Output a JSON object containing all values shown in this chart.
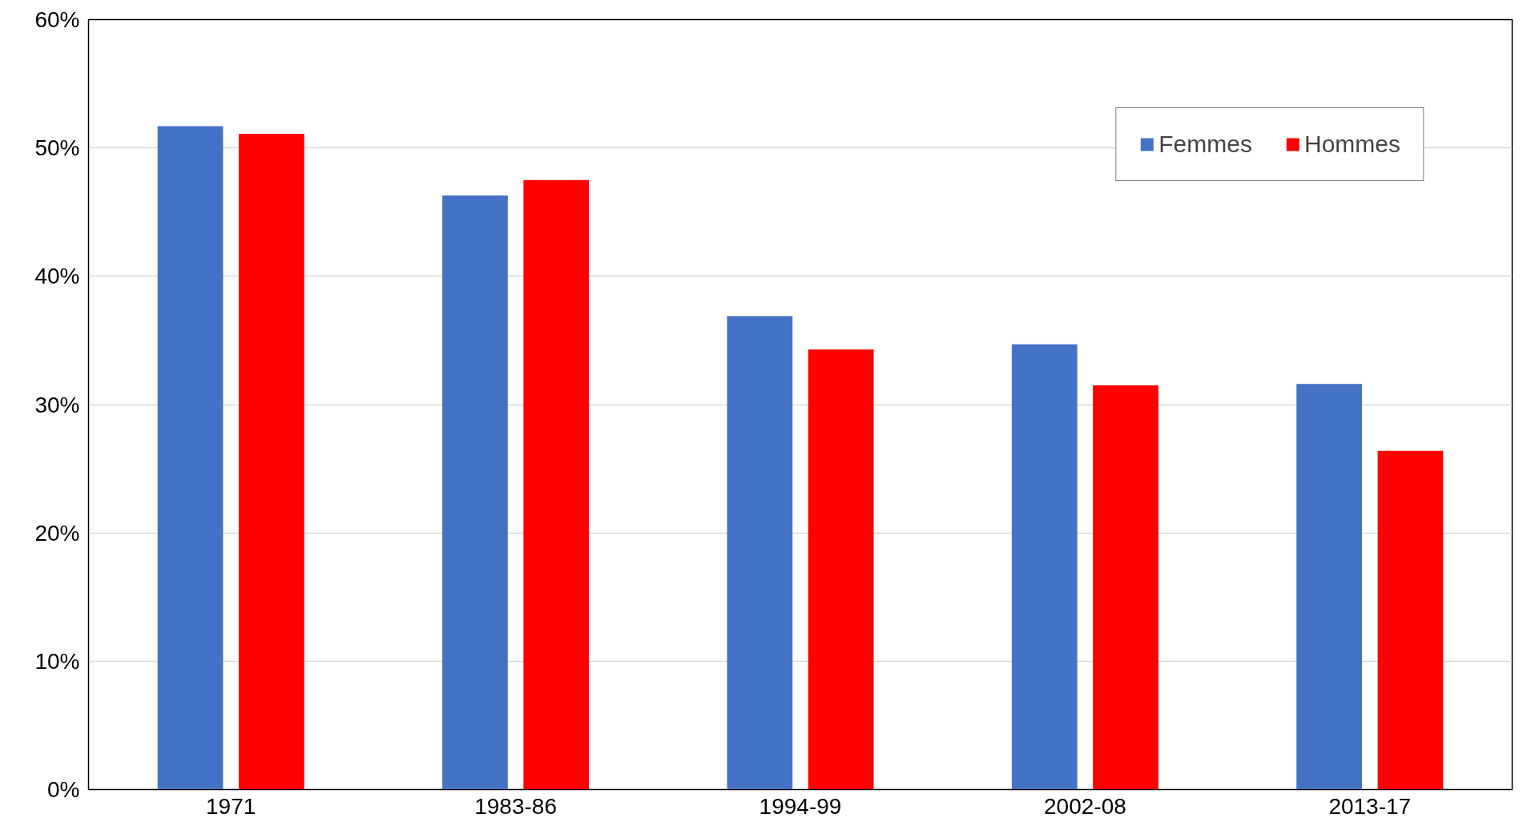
{
  "chart_data": {
    "type": "bar",
    "categories": [
      "1971",
      "1983-86",
      "1994-99",
      "2002-08",
      "2013-17"
    ],
    "series": [
      {
        "name": "Femmes",
        "color": "#4472c4",
        "values": [
          51.7,
          46.3,
          36.9,
          34.7,
          31.6
        ]
      },
      {
        "name": "Hommes",
        "color": "#ff0000",
        "values": [
          51.1,
          47.5,
          34.3,
          31.5,
          26.4
        ]
      }
    ],
    "ylim": [
      0,
      60
    ],
    "yticks": [
      {
        "value": 0,
        "label": "0%"
      },
      {
        "value": 10,
        "label": "10%"
      },
      {
        "value": 20,
        "label": "20%"
      },
      {
        "value": 30,
        "label": "30%"
      },
      {
        "value": 40,
        "label": "40%"
      },
      {
        "value": 50,
        "label": "50%"
      },
      {
        "value": 60,
        "label": "60%"
      }
    ],
    "grid": "y",
    "legend": "top right"
  }
}
